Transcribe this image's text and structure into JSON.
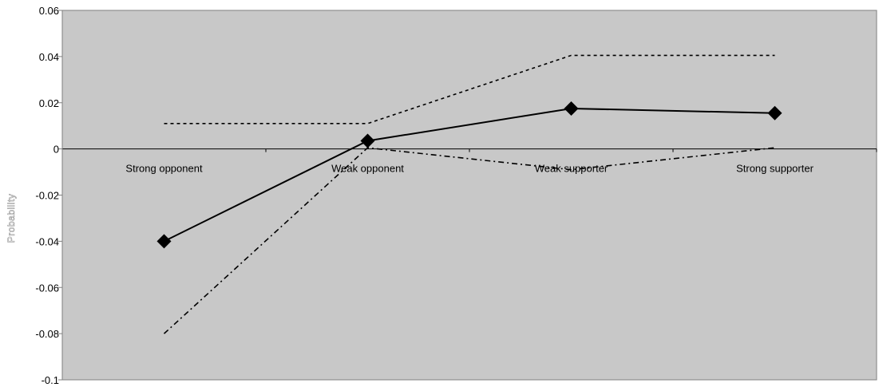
{
  "chart_data": {
    "type": "line",
    "title": "",
    "xlabel": "",
    "ylabel": "Probability",
    "categories": [
      "Strong opponent",
      "Weak opponent",
      "Weak supporter",
      "Strong supporter"
    ],
    "series": [
      {
        "values": [
          -0.04,
          0.0035,
          0.0175,
          0.0155
        ],
        "style": "solid",
        "marker": "diamond"
      },
      {
        "values": [
          0.011,
          0.011,
          0.0405,
          0.0405
        ],
        "style": "dashed"
      },
      {
        "values": [
          -0.08,
          0.0005,
          -0.009,
          0.0005
        ],
        "style": "dash-dot"
      }
    ],
    "ylim": [
      -0.1,
      0.06
    ],
    "yticks": [
      -0.1,
      -0.08,
      -0.06,
      -0.04,
      -0.02,
      0,
      0.02,
      0.04,
      0.06
    ],
    "ytick_labels": [
      "-0.1",
      "-0.08",
      "-0.06",
      "-0.04",
      "-0.02",
      "0",
      "0.02",
      "0.04",
      "0.06"
    ],
    "grid": false,
    "background_color": "#c8c8c8",
    "line_color": "#000000"
  }
}
